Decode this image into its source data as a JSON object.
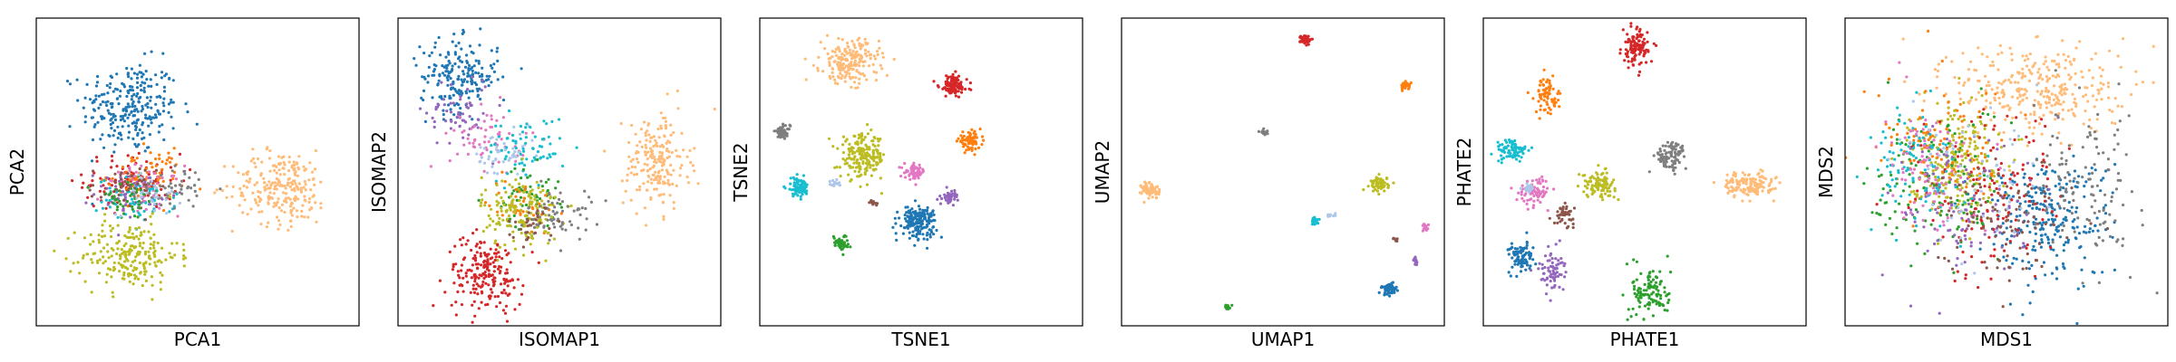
{
  "figure": {
    "panels_count": 6
  },
  "colors": {
    "blue": "#1f77b4",
    "orange": "#ff7f0e",
    "green": "#2ca02c",
    "red": "#d62728",
    "purple": "#9467bd",
    "brown": "#8c564b",
    "pink": "#e377c2",
    "gray": "#7f7f7f",
    "olive": "#bcbd22",
    "cyan": "#17becf",
    "light_blue": "#aec7e8",
    "peach": "#ffbb78"
  },
  "chart_data": [
    {
      "type": "scatter",
      "xlabel": "PCA1",
      "ylabel": "PCA2",
      "xlim": [
        0,
        1
      ],
      "ylim": [
        0,
        1
      ],
      "grid": false,
      "ticks": false,
      "clusters": [
        {
          "color": "blue",
          "x": 0.29,
          "y": 0.71,
          "sx": 0.075,
          "sy": 0.075,
          "n": 260
        },
        {
          "color": "red",
          "x": 0.3,
          "y": 0.47,
          "sx": 0.075,
          "sy": 0.045,
          "n": 110
        },
        {
          "color": "orange",
          "x": 0.34,
          "y": 0.49,
          "sx": 0.06,
          "sy": 0.04,
          "n": 70
        },
        {
          "color": "pink",
          "x": 0.33,
          "y": 0.44,
          "sx": 0.06,
          "sy": 0.04,
          "n": 60
        },
        {
          "color": "cyan",
          "x": 0.31,
          "y": 0.41,
          "sx": 0.06,
          "sy": 0.035,
          "n": 60
        },
        {
          "color": "gray",
          "x": 0.42,
          "y": 0.45,
          "sx": 0.05,
          "sy": 0.035,
          "n": 50
        },
        {
          "color": "purple",
          "x": 0.28,
          "y": 0.43,
          "sx": 0.05,
          "sy": 0.035,
          "n": 40
        },
        {
          "color": "brown",
          "x": 0.27,
          "y": 0.45,
          "sx": 0.05,
          "sy": 0.035,
          "n": 40
        },
        {
          "color": "green",
          "x": 0.28,
          "y": 0.41,
          "sx": 0.05,
          "sy": 0.035,
          "n": 40
        },
        {
          "color": "light_blue",
          "x": 0.35,
          "y": 0.43,
          "sx": 0.05,
          "sy": 0.035,
          "n": 30
        },
        {
          "color": "olive",
          "x": 0.29,
          "y": 0.23,
          "sx": 0.075,
          "sy": 0.055,
          "n": 220
        },
        {
          "color": "peach",
          "x": 0.76,
          "y": 0.45,
          "sx": 0.075,
          "sy": 0.06,
          "n": 240
        }
      ]
    },
    {
      "type": "scatter",
      "xlabel": "ISOMAP1",
      "ylabel": "ISOMAP2",
      "xlim": [
        0,
        1
      ],
      "ylim": [
        0,
        1
      ],
      "grid": false,
      "ticks": false,
      "clusters": [
        {
          "color": "blue",
          "x": 0.19,
          "y": 0.81,
          "sx": 0.06,
          "sy": 0.06,
          "n": 200
        },
        {
          "color": "purple",
          "x": 0.19,
          "y": 0.7,
          "sx": 0.05,
          "sy": 0.06,
          "n": 60
        },
        {
          "color": "pink",
          "x": 0.28,
          "y": 0.61,
          "sx": 0.06,
          "sy": 0.05,
          "n": 60
        },
        {
          "color": "light_blue",
          "x": 0.33,
          "y": 0.55,
          "sx": 0.05,
          "sy": 0.04,
          "n": 50
        },
        {
          "color": "cyan",
          "x": 0.4,
          "y": 0.58,
          "sx": 0.06,
          "sy": 0.05,
          "n": 70
        },
        {
          "color": "green",
          "x": 0.4,
          "y": 0.42,
          "sx": 0.05,
          "sy": 0.05,
          "n": 60
        },
        {
          "color": "orange",
          "x": 0.38,
          "y": 0.4,
          "sx": 0.05,
          "sy": 0.04,
          "n": 40
        },
        {
          "color": "olive",
          "x": 0.38,
          "y": 0.37,
          "sx": 0.06,
          "sy": 0.06,
          "n": 160
        },
        {
          "color": "gray",
          "x": 0.5,
          "y": 0.36,
          "sx": 0.05,
          "sy": 0.04,
          "n": 70
        },
        {
          "color": "brown",
          "x": 0.42,
          "y": 0.33,
          "sx": 0.04,
          "sy": 0.03,
          "n": 30
        },
        {
          "color": "red",
          "x": 0.27,
          "y": 0.17,
          "sx": 0.06,
          "sy": 0.06,
          "n": 200
        },
        {
          "color": "peach",
          "x": 0.8,
          "y": 0.53,
          "sx": 0.05,
          "sy": 0.08,
          "n": 200
        }
      ]
    },
    {
      "type": "scatter",
      "xlabel": "TSNE1",
      "ylabel": "TSNE2",
      "xlim": [
        0,
        1
      ],
      "ylim": [
        0,
        1
      ],
      "grid": false,
      "ticks": false,
      "clusters": [
        {
          "color": "peach",
          "x": 0.28,
          "y": 0.86,
          "sx": 0.045,
          "sy": 0.035,
          "n": 200
        },
        {
          "color": "red",
          "x": 0.6,
          "y": 0.78,
          "sx": 0.022,
          "sy": 0.018,
          "n": 110
        },
        {
          "color": "gray",
          "x": 0.07,
          "y": 0.63,
          "sx": 0.012,
          "sy": 0.01,
          "n": 50
        },
        {
          "color": "orange",
          "x": 0.65,
          "y": 0.6,
          "sx": 0.018,
          "sy": 0.014,
          "n": 80
        },
        {
          "color": "olive",
          "x": 0.32,
          "y": 0.55,
          "sx": 0.035,
          "sy": 0.035,
          "n": 200
        },
        {
          "color": "pink",
          "x": 0.48,
          "y": 0.5,
          "sx": 0.016,
          "sy": 0.012,
          "n": 60
        },
        {
          "color": "cyan",
          "x": 0.12,
          "y": 0.45,
          "sx": 0.018,
          "sy": 0.015,
          "n": 80
        },
        {
          "color": "light_blue",
          "x": 0.23,
          "y": 0.46,
          "sx": 0.007,
          "sy": 0.006,
          "n": 15
        },
        {
          "color": "purple",
          "x": 0.59,
          "y": 0.42,
          "sx": 0.012,
          "sy": 0.01,
          "n": 40
        },
        {
          "color": "brown",
          "x": 0.35,
          "y": 0.4,
          "sx": 0.006,
          "sy": 0.006,
          "n": 12
        },
        {
          "color": "blue",
          "x": 0.49,
          "y": 0.34,
          "sx": 0.028,
          "sy": 0.025,
          "n": 170
        },
        {
          "color": "green",
          "x": 0.25,
          "y": 0.27,
          "sx": 0.012,
          "sy": 0.012,
          "n": 50
        }
      ]
    },
    {
      "type": "scatter",
      "xlabel": "UMAP1",
      "ylabel": "UMAP2",
      "xlim": [
        0,
        1
      ],
      "ylim": [
        0,
        1
      ],
      "grid": false,
      "ticks": false,
      "clusters": [
        {
          "color": "red",
          "x": 0.57,
          "y": 0.93,
          "sx": 0.008,
          "sy": 0.008,
          "n": 40
        },
        {
          "color": "orange",
          "x": 0.88,
          "y": 0.78,
          "sx": 0.008,
          "sy": 0.006,
          "n": 35
        },
        {
          "color": "gray",
          "x": 0.44,
          "y": 0.63,
          "sx": 0.006,
          "sy": 0.005,
          "n": 15
        },
        {
          "color": "peach",
          "x": 0.09,
          "y": 0.44,
          "sx": 0.014,
          "sy": 0.014,
          "n": 70
        },
        {
          "color": "olive",
          "x": 0.8,
          "y": 0.46,
          "sx": 0.014,
          "sy": 0.012,
          "n": 70
        },
        {
          "color": "light_blue",
          "x": 0.65,
          "y": 0.36,
          "sx": 0.006,
          "sy": 0.003,
          "n": 12
        },
        {
          "color": "cyan",
          "x": 0.6,
          "y": 0.34,
          "sx": 0.007,
          "sy": 0.006,
          "n": 20
        },
        {
          "color": "pink",
          "x": 0.94,
          "y": 0.32,
          "sx": 0.006,
          "sy": 0.006,
          "n": 15
        },
        {
          "color": "brown",
          "x": 0.85,
          "y": 0.28,
          "sx": 0.004,
          "sy": 0.004,
          "n": 8
        },
        {
          "color": "purple",
          "x": 0.91,
          "y": 0.21,
          "sx": 0.005,
          "sy": 0.006,
          "n": 12
        },
        {
          "color": "blue",
          "x": 0.83,
          "y": 0.12,
          "sx": 0.012,
          "sy": 0.01,
          "n": 50
        },
        {
          "color": "green",
          "x": 0.33,
          "y": 0.06,
          "sx": 0.006,
          "sy": 0.005,
          "n": 15
        }
      ]
    },
    {
      "type": "scatter",
      "xlabel": "PHATE1",
      "ylabel": "PHATE2",
      "xlim": [
        0,
        1
      ],
      "ylim": [
        0,
        1
      ],
      "grid": false,
      "ticks": false,
      "clusters": [
        {
          "color": "red",
          "x": 0.47,
          "y": 0.9,
          "sx": 0.02,
          "sy": 0.03,
          "n": 110
        },
        {
          "color": "orange",
          "x": 0.2,
          "y": 0.75,
          "sx": 0.02,
          "sy": 0.03,
          "n": 70
        },
        {
          "color": "cyan",
          "x": 0.09,
          "y": 0.57,
          "sx": 0.025,
          "sy": 0.018,
          "n": 80
        },
        {
          "color": "gray",
          "x": 0.58,
          "y": 0.55,
          "sx": 0.025,
          "sy": 0.025,
          "n": 90
        },
        {
          "color": "olive",
          "x": 0.36,
          "y": 0.46,
          "sx": 0.025,
          "sy": 0.02,
          "n": 100
        },
        {
          "color": "pink",
          "x": 0.16,
          "y": 0.44,
          "sx": 0.025,
          "sy": 0.022,
          "n": 80
        },
        {
          "color": "light_blue",
          "x": 0.14,
          "y": 0.45,
          "sx": 0.01,
          "sy": 0.008,
          "n": 20
        },
        {
          "color": "brown",
          "x": 0.25,
          "y": 0.36,
          "sx": 0.015,
          "sy": 0.015,
          "n": 45
        },
        {
          "color": "peach",
          "x": 0.82,
          "y": 0.46,
          "sx": 0.04,
          "sy": 0.02,
          "n": 150
        },
        {
          "color": "blue",
          "x": 0.12,
          "y": 0.22,
          "sx": 0.02,
          "sy": 0.025,
          "n": 90
        },
        {
          "color": "purple",
          "x": 0.21,
          "y": 0.18,
          "sx": 0.02,
          "sy": 0.035,
          "n": 70
        },
        {
          "color": "green",
          "x": 0.52,
          "y": 0.11,
          "sx": 0.03,
          "sy": 0.045,
          "n": 110
        }
      ]
    },
    {
      "type": "scatter",
      "xlabel": "MDS1",
      "ylabel": "MDS2",
      "xlim": [
        0,
        1
      ],
      "ylim": [
        0,
        1
      ],
      "grid": false,
      "ticks": false,
      "clusters": [
        {
          "color": "peach",
          "x": 0.6,
          "y": 0.77,
          "sx": 0.13,
          "sy": 0.075,
          "n": 320
        },
        {
          "color": "olive",
          "x": 0.34,
          "y": 0.54,
          "sx": 0.07,
          "sy": 0.09,
          "n": 240
        },
        {
          "color": "blue",
          "x": 0.62,
          "y": 0.35,
          "sx": 0.1,
          "sy": 0.1,
          "n": 260
        },
        {
          "color": "red",
          "x": 0.45,
          "y": 0.42,
          "sx": 0.12,
          "sy": 0.14,
          "n": 140
        },
        {
          "color": "green",
          "x": 0.28,
          "y": 0.46,
          "sx": 0.1,
          "sy": 0.13,
          "n": 130
        },
        {
          "color": "purple",
          "x": 0.38,
          "y": 0.4,
          "sx": 0.12,
          "sy": 0.13,
          "n": 110
        },
        {
          "color": "orange",
          "x": 0.3,
          "y": 0.58,
          "sx": 0.1,
          "sy": 0.1,
          "n": 100
        },
        {
          "color": "cyan",
          "x": 0.22,
          "y": 0.5,
          "sx": 0.07,
          "sy": 0.1,
          "n": 100
        },
        {
          "color": "pink",
          "x": 0.25,
          "y": 0.52,
          "sx": 0.07,
          "sy": 0.1,
          "n": 80
        },
        {
          "color": "brown",
          "x": 0.5,
          "y": 0.35,
          "sx": 0.1,
          "sy": 0.1,
          "n": 100
        },
        {
          "color": "gray",
          "x": 0.75,
          "y": 0.45,
          "sx": 0.08,
          "sy": 0.12,
          "n": 120
        },
        {
          "color": "light_blue",
          "x": 0.4,
          "y": 0.45,
          "sx": 0.12,
          "sy": 0.12,
          "n": 60
        }
      ]
    }
  ]
}
